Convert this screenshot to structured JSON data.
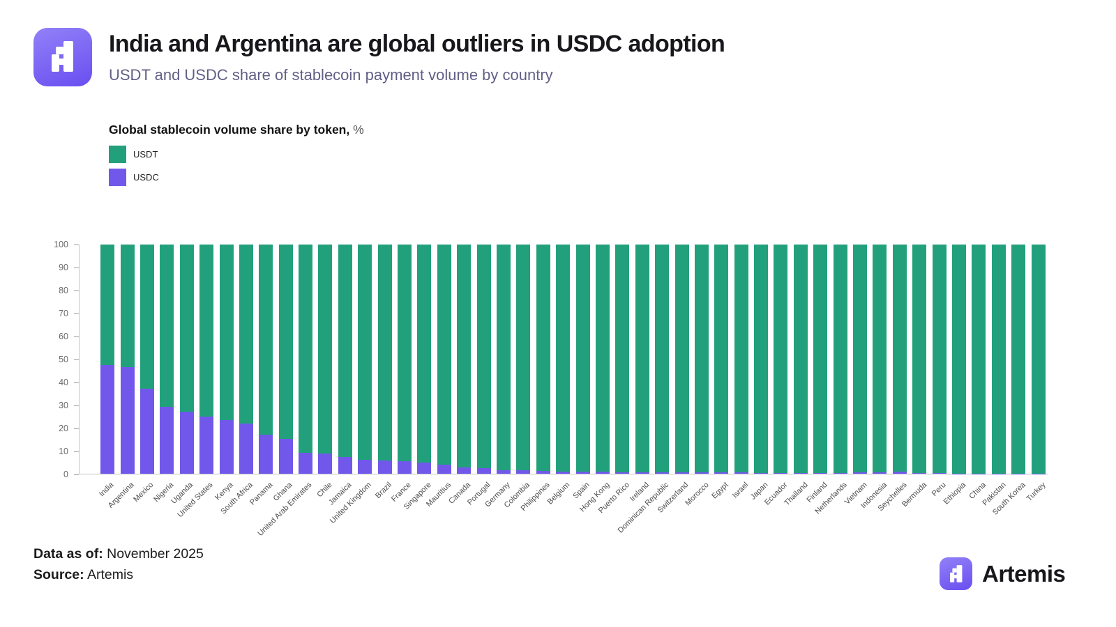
{
  "header": {
    "title": "India and Argentina are global outliers in USDC adoption",
    "subtitle": "USDT and USDC share of stablecoin payment volume by country"
  },
  "legend": {
    "title": "Global stablecoin volume share by token,",
    "unit": "%",
    "items": [
      {
        "label": "USDT",
        "color": "#22a07c"
      },
      {
        "label": "USDC",
        "color": "#7158eb"
      }
    ]
  },
  "chart_data": {
    "type": "bar",
    "stacked": true,
    "title": "Global stablecoin volume share by token, %",
    "xlabel": "",
    "ylabel": "",
    "ylim": [
      0,
      100
    ],
    "yticks": [
      0,
      10,
      20,
      30,
      40,
      50,
      60,
      70,
      80,
      90,
      100
    ],
    "grid": false,
    "legend_position": "top-left",
    "categories": [
      "India",
      "Argentina",
      "Mexico",
      "Nigeria",
      "Uganda",
      "United States",
      "Kenya",
      "South Africa",
      "Panama",
      "Ghana",
      "United Arab Emirates",
      "Chile",
      "Jamaica",
      "United Kingdom",
      "Brazil",
      "France",
      "Singapore",
      "Mauritius",
      "Canada",
      "Portugal",
      "Germany",
      "Colombia",
      "Philippines",
      "Belgium",
      "Spain",
      "Hong Kong",
      "Puerto Rico",
      "Ireland",
      "Dominican Republic",
      "Switzerland",
      "Morocco",
      "Egypt",
      "Israel",
      "Japan",
      "Ecuador",
      "Thailand",
      "Finland",
      "Netherlands",
      "Vietnam",
      "Indonesia",
      "Seychelles",
      "Bermuda",
      "Peru",
      "Ethiopia",
      "China",
      "Pakistan",
      "South Korea",
      "Turkey"
    ],
    "series": [
      {
        "name": "USDT",
        "color": "#22a07c",
        "values": [
          52.5,
          53.5,
          63,
          70.7,
          73,
          75.2,
          76.7,
          78,
          83.1,
          84.8,
          90.8,
          91.3,
          92.7,
          93.8,
          94.3,
          94.4,
          95.1,
          95.9,
          97.4,
          97.7,
          98.4,
          98.6,
          98.9,
          99.0,
          99.0,
          99.2,
          99.3,
          99.3,
          99.3,
          99.5,
          99.5,
          99.5,
          99.5,
          99.6,
          99.6,
          99.6,
          99.7,
          99.6,
          99.5,
          99.4,
          99.2,
          99.8,
          99.8,
          99.9,
          99.9,
          99.9,
          99.9,
          99.9
        ]
      },
      {
        "name": "USDC",
        "color": "#7158eb",
        "values": [
          47.5,
          46.5,
          37,
          29.3,
          27,
          24.8,
          23.3,
          22,
          16.9,
          15.2,
          9.2,
          8.7,
          7.3,
          6.2,
          5.7,
          5.6,
          4.9,
          4.1,
          2.6,
          2.3,
          1.6,
          1.4,
          1.1,
          1.0,
          1.0,
          0.8,
          0.7,
          0.7,
          0.7,
          0.5,
          0.5,
          0.5,
          0.5,
          0.4,
          0.4,
          0.4,
          0.3,
          0.4,
          0.5,
          0.6,
          0.8,
          0.2,
          0.2,
          0.1,
          0.1,
          0.1,
          0.1,
          0.1
        ]
      }
    ]
  },
  "footer": {
    "data_as_of_label": "Data as of:",
    "data_as_of_value": " November 2025",
    "source_label": "Source:",
    "source_value": " Artemis"
  },
  "brand": {
    "name": "Artemis"
  },
  "colors": {
    "usdt_green": "#22a07c",
    "usdc_purple": "#7158eb",
    "logo_gradient_light": "#9181f8",
    "logo_gradient_dark": "#6a4ef0",
    "axis_line": "#c6c6c6",
    "axis_text": "#6b6b6b"
  }
}
